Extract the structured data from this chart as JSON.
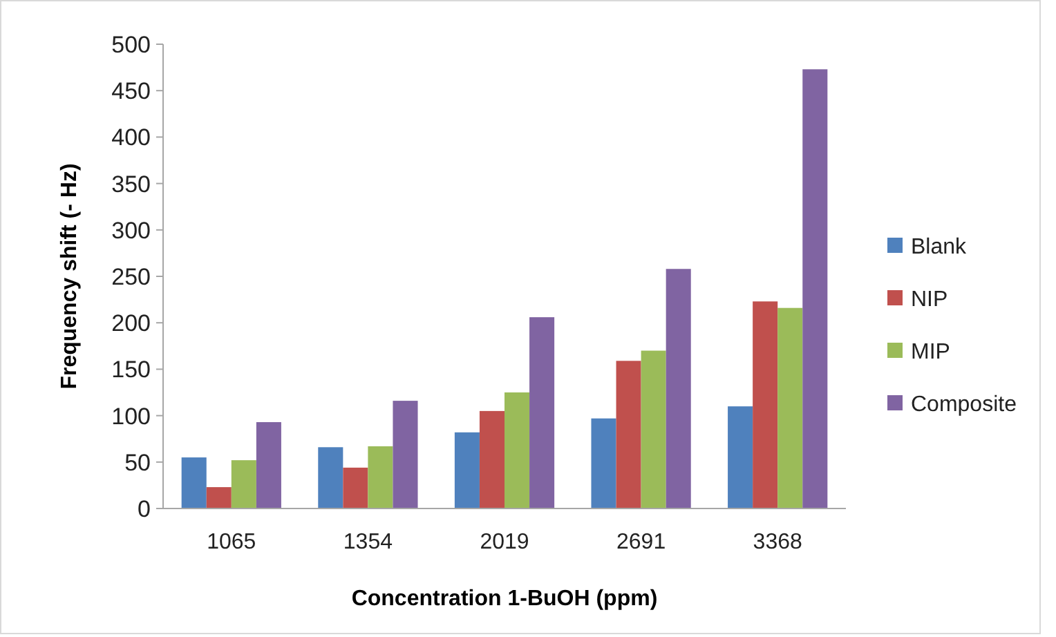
{
  "chart_data": {
    "type": "bar",
    "xlabel": "Concentration 1-BuOH (ppm)",
    "ylabel": "Frequency shift (- Hz)",
    "categories": [
      "1065",
      "1354",
      "2019",
      "2691",
      "3368"
    ],
    "series": [
      {
        "name": "Blank",
        "color": "#4f81bd",
        "values": [
          55,
          66,
          82,
          97,
          110
        ]
      },
      {
        "name": "NIP",
        "color": "#c0504d",
        "values": [
          23,
          44,
          105,
          159,
          223
        ]
      },
      {
        "name": "MIP",
        "color": "#9bbb59",
        "values": [
          52,
          67,
          125,
          170,
          216
        ]
      },
      {
        "name": "Composite",
        "color": "#8064a2",
        "values": [
          93,
          116,
          206,
          258,
          473
        ]
      }
    ],
    "ylim": [
      0,
      500
    ],
    "yticks": [
      0,
      50,
      100,
      150,
      200,
      250,
      300,
      350,
      400,
      450,
      500
    ],
    "grid": false,
    "legend": "right"
  }
}
